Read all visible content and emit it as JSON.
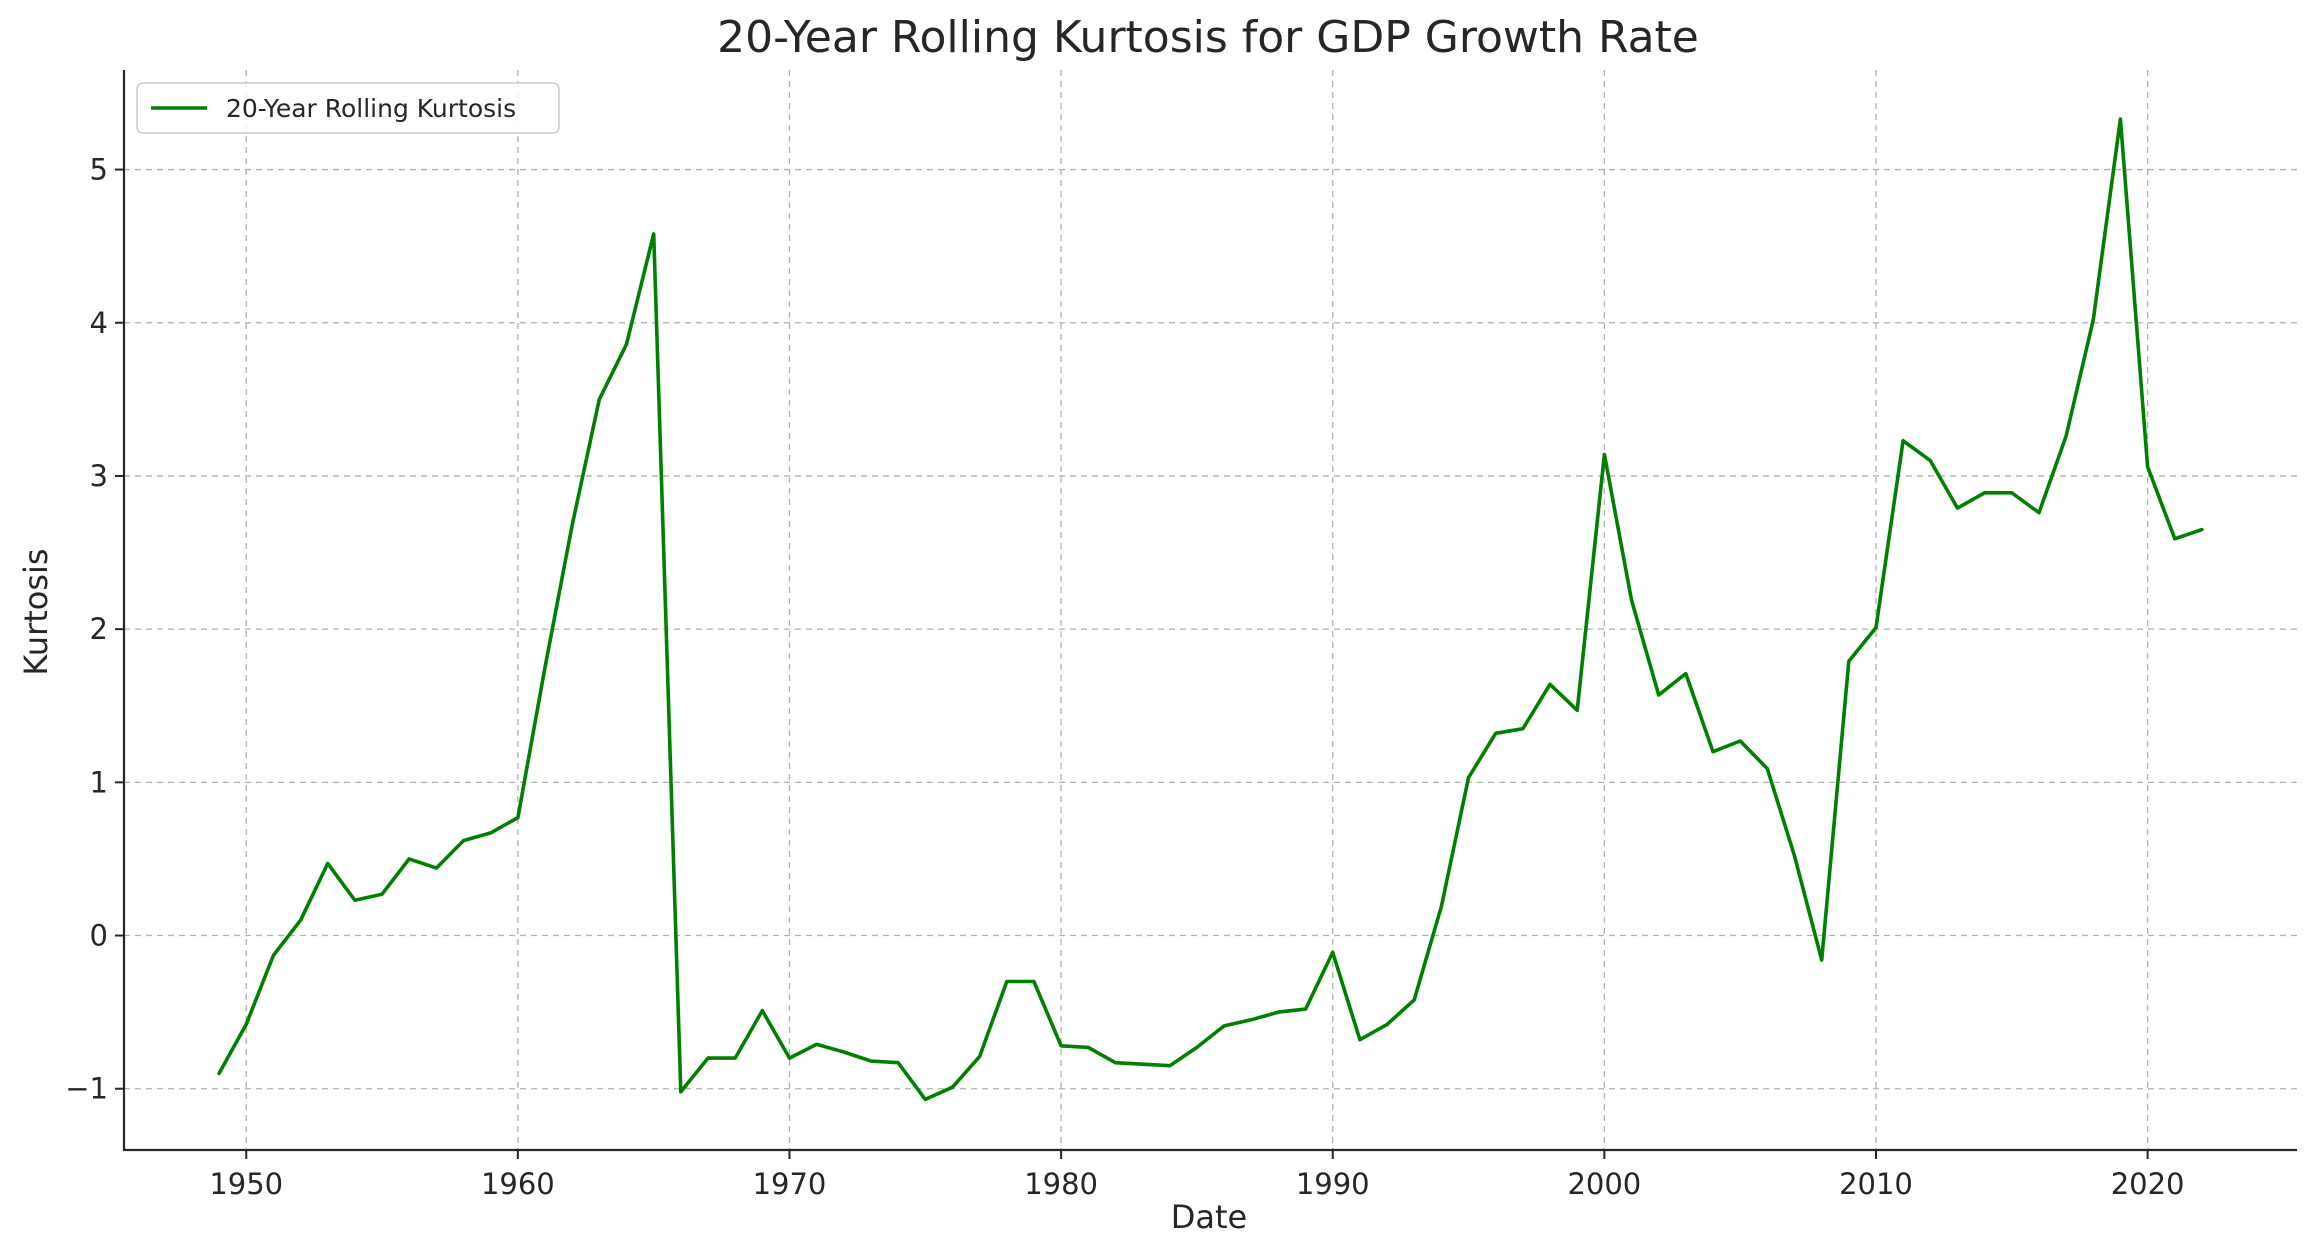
{
  "chart_data": {
    "type": "line",
    "title": "20-Year Rolling Kurtosis for GDP Growth Rate",
    "xlabel": "Date",
    "ylabel": "Kurtosis",
    "xlim": [
      1945.5,
      2025.5
    ],
    "ylim": [
      -1.4,
      5.65
    ],
    "xticks": [
      1950,
      1960,
      1970,
      1980,
      1990,
      2000,
      2010,
      2020
    ],
    "yticks": [
      -1,
      0,
      1,
      2,
      3,
      4,
      5
    ],
    "ytick_labels": [
      "−1",
      "0",
      "1",
      "2",
      "3",
      "4",
      "5"
    ],
    "grid": true,
    "legend_position": "top-left",
    "series": [
      {
        "name": "20-Year Rolling Kurtosis",
        "color": "#008000",
        "x": [
          1949,
          1950,
          1951,
          1952,
          1953,
          1954,
          1955,
          1956,
          1957,
          1958,
          1959,
          1960,
          1961,
          1962,
          1963,
          1964,
          1965,
          1966,
          1967,
          1968,
          1969,
          1970,
          1971,
          1972,
          1973,
          1974,
          1975,
          1976,
          1977,
          1978,
          1979,
          1980,
          1981,
          1982,
          1983,
          1984,
          1985,
          1986,
          1987,
          1988,
          1989,
          1990,
          1991,
          1992,
          1993,
          1994,
          1995,
          1996,
          1997,
          1998,
          1999,
          2000,
          2001,
          2002,
          2003,
          2004,
          2005,
          2006,
          2007,
          2008,
          2009,
          2010,
          2011,
          2012,
          2013,
          2014,
          2015,
          2016,
          2017,
          2018,
          2019,
          2020,
          2021,
          2022
        ],
        "y": [
          -0.9,
          -0.58,
          -0.13,
          0.1,
          0.47,
          0.23,
          0.27,
          0.5,
          0.44,
          0.62,
          0.67,
          0.77,
          1.75,
          2.68,
          3.5,
          3.86,
          4.58,
          -1.02,
          -0.8,
          -0.8,
          -0.49,
          -0.8,
          -0.71,
          -0.76,
          -0.82,
          -0.83,
          -1.07,
          -0.99,
          -0.79,
          -0.3,
          -0.3,
          -0.72,
          -0.73,
          -0.83,
          -0.84,
          -0.85,
          -0.73,
          -0.59,
          -0.55,
          -0.5,
          -0.48,
          -0.11,
          -0.68,
          -0.58,
          -0.42,
          0.19,
          1.03,
          1.32,
          1.35,
          1.64,
          1.47,
          3.14,
          2.19,
          1.57,
          1.71,
          1.2,
          1.27,
          1.09,
          0.52,
          -0.16,
          1.79,
          2.01,
          3.23,
          3.1,
          2.79,
          2.89,
          2.89,
          2.76,
          3.26,
          4.02,
          5.33,
          3.06,
          2.59,
          2.65
        ]
      }
    ]
  }
}
